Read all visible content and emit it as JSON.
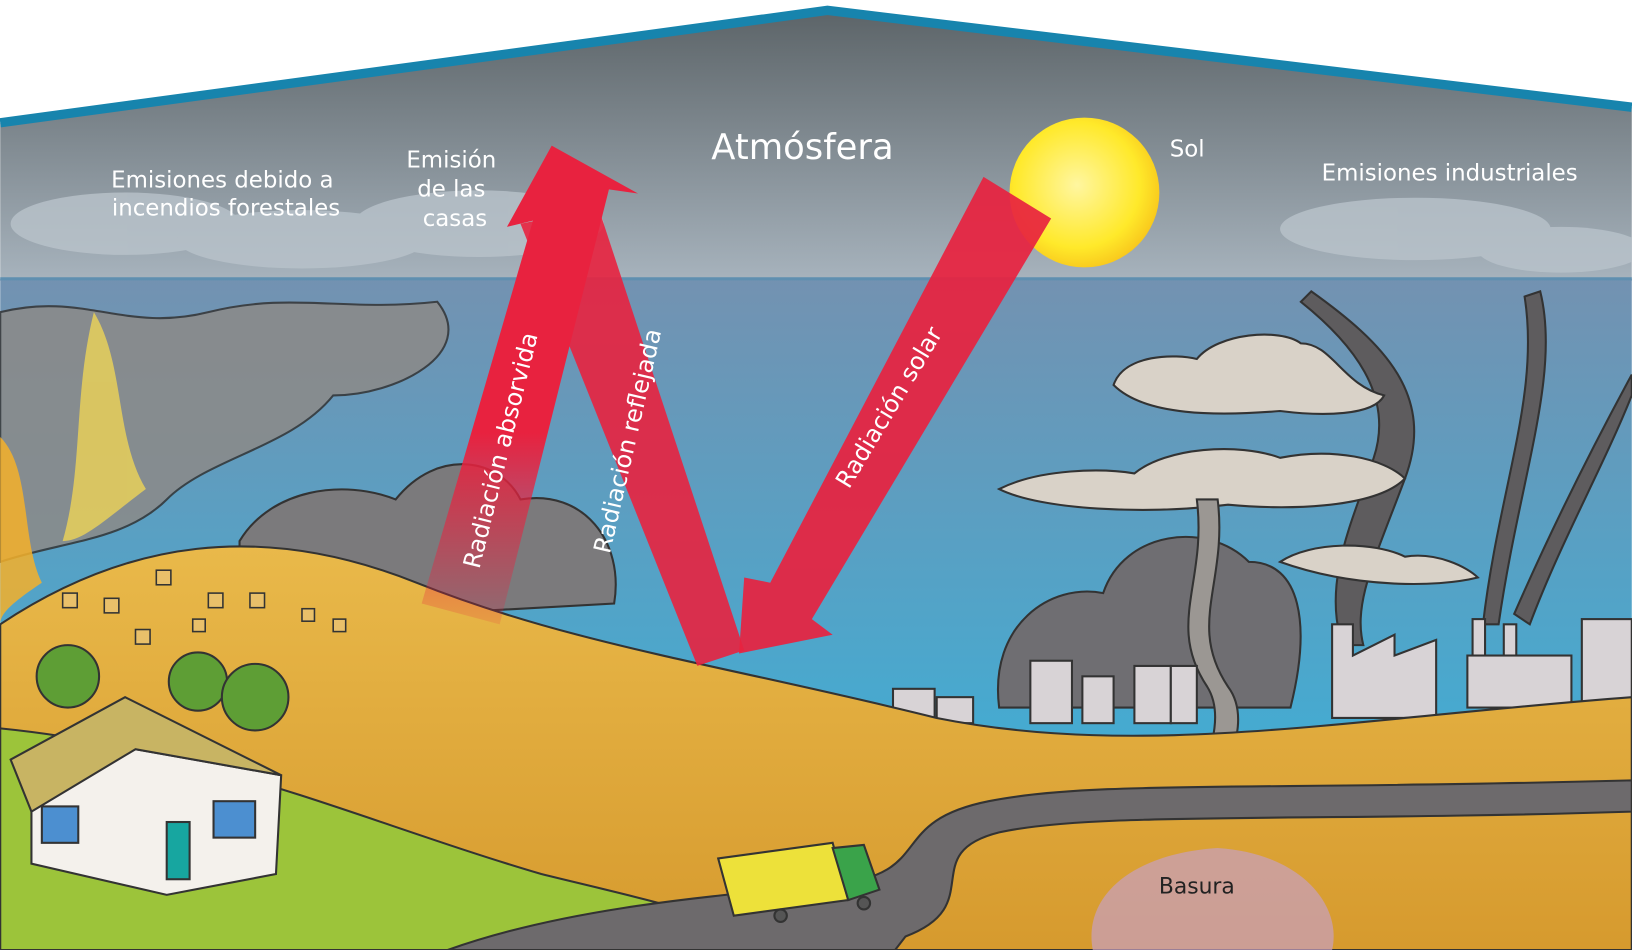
{
  "title": "Atmósfera",
  "labels": {
    "sun": "Sol",
    "forest_fire_emissions": [
      "Emisiones debido a",
      "incendios forestales"
    ],
    "house_emissions": [
      "Emisión",
      "de las",
      "casas"
    ],
    "industrial_emissions": "Emisiones industriales",
    "absorbed_radiation": "Radiación absorvida",
    "reflected_radiation": "Radiación reflejada",
    "solar_radiation": "Radiación solar",
    "garbage": "Basura"
  }
}
